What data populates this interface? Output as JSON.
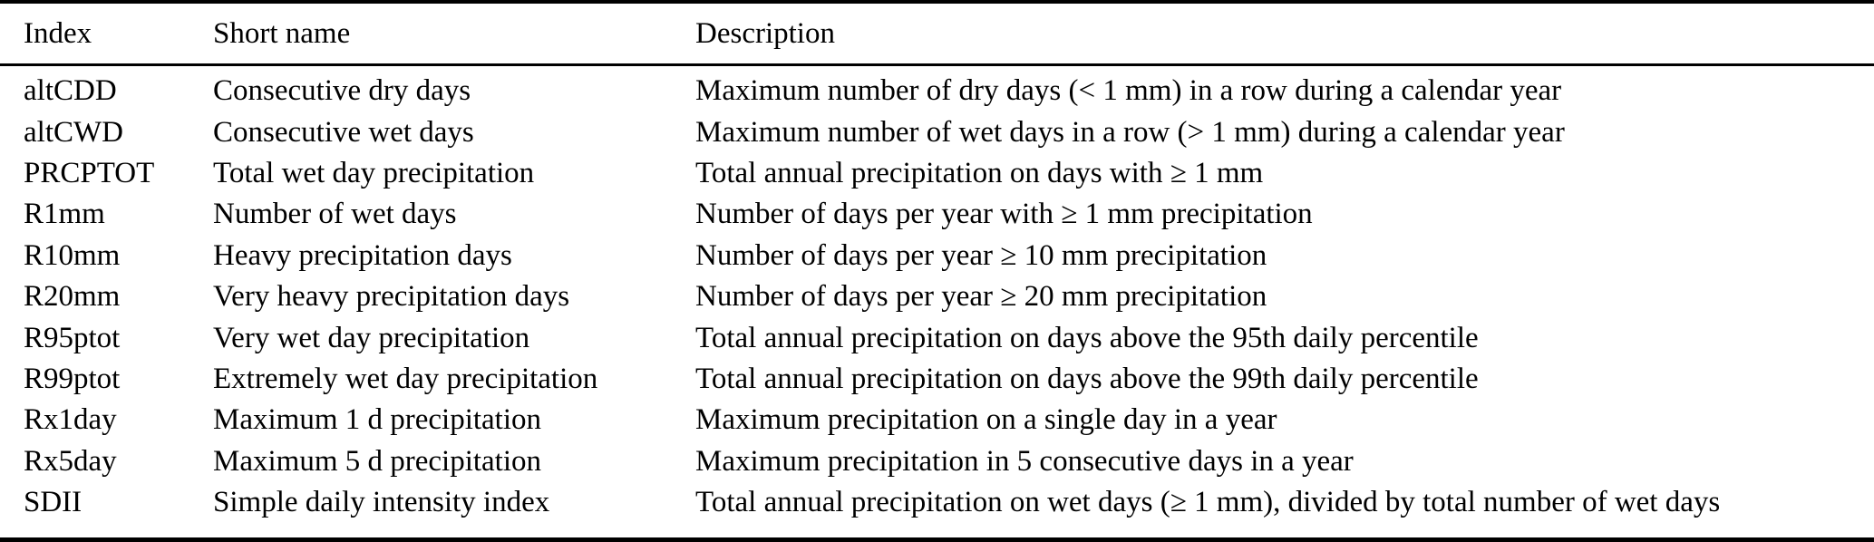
{
  "table": {
    "columns": {
      "index": "Index",
      "short_name": "Short name",
      "description": "Description"
    },
    "rows": [
      {
        "index": "altCDD",
        "short_name": "Consecutive dry days",
        "description": "Maximum number of dry days (< 1 mm) in a row during a calendar year"
      },
      {
        "index": "altCWD",
        "short_name": "Consecutive wet days",
        "description": "Maximum number of wet days in a row (> 1 mm) during a calendar year"
      },
      {
        "index": "PRCPTOT",
        "short_name": "Total wet day precipitation",
        "description": "Total annual precipitation on days with ≥ 1 mm"
      },
      {
        "index": "R1mm",
        "short_name": "Number of wet days",
        "description": "Number of days per year with ≥ 1 mm precipitation"
      },
      {
        "index": "R10mm",
        "short_name": "Heavy precipitation days",
        "description": "Number of days per year ≥ 10 mm precipitation"
      },
      {
        "index": "R20mm",
        "short_name": "Very heavy precipitation days",
        "description": "Number of days per year ≥ 20 mm precipitation"
      },
      {
        "index": "R95ptot",
        "short_name": "Very wet day precipitation",
        "description": "Total annual precipitation on days above the 95th daily percentile"
      },
      {
        "index": "R99ptot",
        "short_name": "Extremely wet day precipitation",
        "description": "Total annual precipitation on days above the 99th daily percentile"
      },
      {
        "index": "Rx1day",
        "short_name": "Maximum 1 d precipitation",
        "description": "Maximum precipitation on a single day in a year"
      },
      {
        "index": "Rx5day",
        "short_name": "Maximum 5 d precipitation",
        "description": "Maximum precipitation in 5 consecutive days in a year"
      },
      {
        "index": "SDII",
        "short_name": "Simple daily intensity index",
        "description": "Total annual precipitation on wet days (≥ 1 mm), divided by total number of wet days"
      }
    ],
    "rule_color": "#000000",
    "text_color": "#000000",
    "background_color": "#ffffff"
  }
}
